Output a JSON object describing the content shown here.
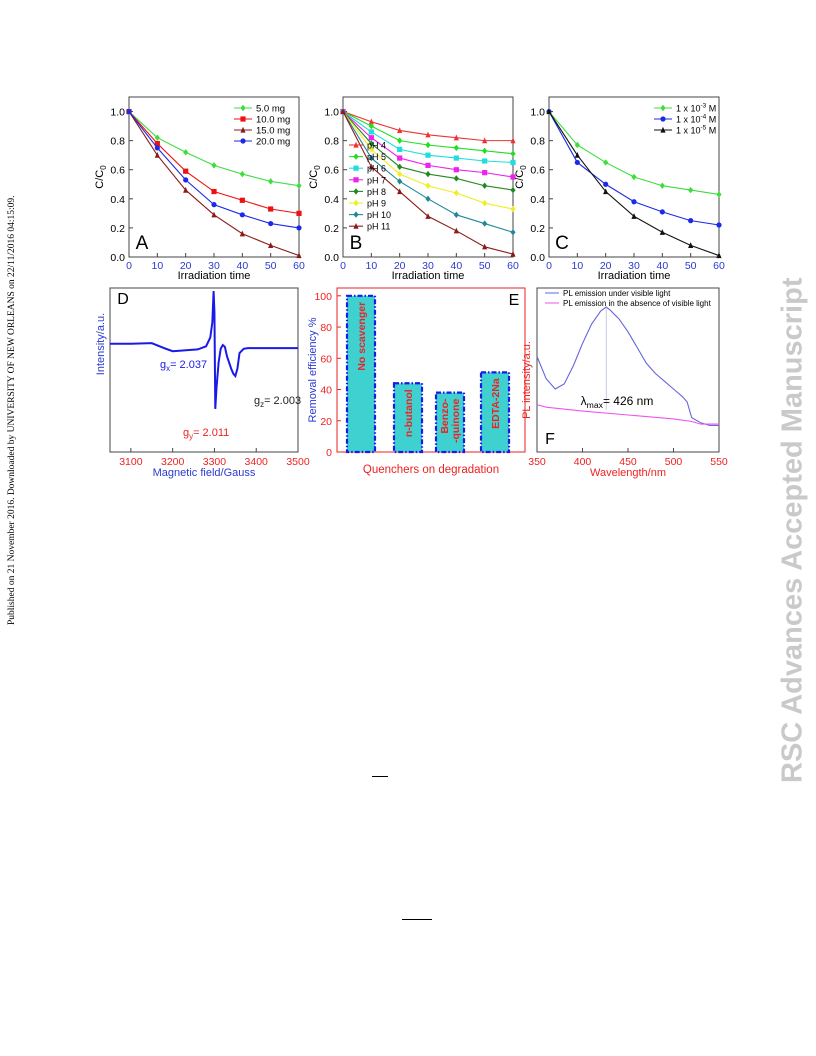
{
  "side_left": "Published on 21 November 2016. Downloaded by UNIVERSITY OF NEW ORLEANS on 22/11/2016 04:15:09.",
  "side_right": "RSC Advances Accepted Manuscript",
  "chart_data": [
    {
      "id": "A",
      "type": "line",
      "panel_label": "A",
      "xlabel": "Irradiation time",
      "ylabel": "C/C0",
      "xlim": [
        0,
        60
      ],
      "ylim": [
        0,
        1.1
      ],
      "xticks": [
        0,
        10,
        20,
        30,
        40,
        50,
        60
      ],
      "yticks": [
        0.0,
        0.2,
        0.4,
        0.6,
        0.8,
        1.0
      ],
      "legend_position": "top-right",
      "series": [
        {
          "name": "5.0 mg",
          "color": "#3cde3c",
          "marker": "diamond",
          "x": [
            0,
            10,
            20,
            30,
            40,
            50,
            60
          ],
          "y": [
            1.0,
            0.82,
            0.72,
            0.63,
            0.57,
            0.52,
            0.49
          ]
        },
        {
          "name": "10.0 mg",
          "color": "#ee1111",
          "marker": "square",
          "x": [
            0,
            10,
            20,
            30,
            40,
            50,
            60
          ],
          "y": [
            1.0,
            0.78,
            0.59,
            0.45,
            0.39,
            0.33,
            0.3
          ]
        },
        {
          "name": "15.0 mg",
          "color": "#8b1a1a",
          "marker": "triangle",
          "x": [
            0,
            10,
            20,
            30,
            40,
            50,
            60
          ],
          "y": [
            1.0,
            0.7,
            0.46,
            0.29,
            0.16,
            0.08,
            0.01
          ]
        },
        {
          "name": "20.0 mg",
          "color": "#1a2ae8",
          "marker": "circle",
          "x": [
            0,
            10,
            20,
            30,
            40,
            50,
            60
          ],
          "y": [
            1.0,
            0.75,
            0.53,
            0.36,
            0.29,
            0.23,
            0.2
          ]
        }
      ]
    },
    {
      "id": "B",
      "type": "line",
      "panel_label": "B",
      "xlabel": "Irradiation time",
      "ylabel": "C/C0",
      "xlim": [
        0,
        60
      ],
      "ylim": [
        0,
        1.1
      ],
      "xticks": [
        0,
        10,
        20,
        30,
        40,
        50,
        60
      ],
      "yticks": [
        0.0,
        0.2,
        0.4,
        0.6,
        0.8,
        1.0
      ],
      "legend_position": "bottom-left",
      "series": [
        {
          "name": "pH 4",
          "color": "#ee3333",
          "marker": "triangle",
          "x": [
            0,
            10,
            20,
            30,
            40,
            50,
            60
          ],
          "y": [
            1.0,
            0.93,
            0.87,
            0.84,
            0.82,
            0.8,
            0.8
          ]
        },
        {
          "name": "pH 5",
          "color": "#22dd22",
          "marker": "diamond",
          "x": [
            0,
            10,
            20,
            30,
            40,
            50,
            60
          ],
          "y": [
            1.0,
            0.9,
            0.8,
            0.77,
            0.75,
            0.73,
            0.71
          ]
        },
        {
          "name": "pH 6",
          "color": "#22dddd",
          "marker": "square",
          "x": [
            0,
            10,
            20,
            30,
            40,
            50,
            60
          ],
          "y": [
            1.0,
            0.86,
            0.74,
            0.7,
            0.68,
            0.66,
            0.65
          ]
        },
        {
          "name": "pH 7",
          "color": "#ee22ee",
          "marker": "square",
          "x": [
            0,
            10,
            20,
            30,
            40,
            50,
            60
          ],
          "y": [
            1.0,
            0.82,
            0.68,
            0.63,
            0.6,
            0.58,
            0.55
          ]
        },
        {
          "name": "pH 8",
          "color": "#228822",
          "marker": "diamond",
          "x": [
            0,
            10,
            20,
            30,
            40,
            50,
            60
          ],
          "y": [
            1.0,
            0.78,
            0.62,
            0.57,
            0.54,
            0.49,
            0.46
          ]
        },
        {
          "name": "pH 9",
          "color": "#eeee22",
          "marker": "diamond",
          "x": [
            0,
            10,
            20,
            30,
            40,
            50,
            60
          ],
          "y": [
            1.0,
            0.74,
            0.57,
            0.49,
            0.44,
            0.37,
            0.33
          ]
        },
        {
          "name": "pH 10",
          "color": "#228899",
          "marker": "diamond",
          "x": [
            0,
            10,
            20,
            30,
            40,
            50,
            60
          ],
          "y": [
            1.0,
            0.68,
            0.52,
            0.4,
            0.29,
            0.23,
            0.17
          ]
        },
        {
          "name": "pH 11",
          "color": "#8b1a1a",
          "marker": "triangle",
          "x": [
            0,
            10,
            20,
            30,
            40,
            50,
            60
          ],
          "y": [
            1.0,
            0.62,
            0.45,
            0.28,
            0.18,
            0.07,
            0.02
          ]
        }
      ]
    },
    {
      "id": "C",
      "type": "line",
      "panel_label": "C",
      "xlabel": "Irradiation time",
      "ylabel": "C/C0",
      "xlim": [
        0,
        60
      ],
      "ylim": [
        0,
        1.1
      ],
      "xticks": [
        0,
        10,
        20,
        30,
        40,
        50,
        60
      ],
      "yticks": [
        0.0,
        0.2,
        0.4,
        0.6,
        0.8,
        1.0
      ],
      "legend_position": "top-right",
      "series": [
        {
          "name": "1 x 10-3 M",
          "name_base": "1 x 10",
          "name_exp": "-3",
          "name_unit": " M",
          "color": "#3cde3c",
          "marker": "diamond",
          "x": [
            0,
            10,
            20,
            30,
            40,
            50,
            60
          ],
          "y": [
            1.0,
            0.77,
            0.65,
            0.55,
            0.49,
            0.46,
            0.43
          ]
        },
        {
          "name": "1 x 10-4 M",
          "name_base": "1 x 10",
          "name_exp": "-4",
          "name_unit": " M",
          "color": "#1a2ae8",
          "marker": "circle",
          "x": [
            0,
            10,
            20,
            30,
            40,
            50,
            60
          ],
          "y": [
            1.0,
            0.65,
            0.5,
            0.38,
            0.31,
            0.25,
            0.22
          ]
        },
        {
          "name": "1 x 10-5 M",
          "name_base": "1 x 10",
          "name_exp": "-5",
          "name_unit": " M",
          "color": "#111111",
          "marker": "triangle",
          "x": [
            0,
            10,
            20,
            30,
            40,
            50,
            60
          ],
          "y": [
            1.0,
            0.7,
            0.45,
            0.28,
            0.17,
            0.08,
            0.01
          ]
        }
      ]
    },
    {
      "id": "D",
      "type": "line",
      "panel_label": "D",
      "xlabel": "Magnetic field/Gauss",
      "ylabel": "Intensity/a.u.",
      "xlim": [
        3050,
        3500
      ],
      "xticks": [
        3100,
        3200,
        3300,
        3400,
        3500
      ],
      "series": [
        {
          "name": "",
          "color": "#1a1ae8",
          "x": [
            3050,
            3100,
            3150,
            3180,
            3200,
            3220,
            3240,
            3260,
            3280,
            3290,
            3295,
            3298,
            3300,
            3302,
            3305,
            3310,
            3315,
            3320,
            3325,
            3330,
            3340,
            3345,
            3350,
            3355,
            3360,
            3370,
            3380,
            3400,
            3450,
            3500
          ],
          "y": [
            0.1,
            0.1,
            0.11,
            0.03,
            -0.02,
            -0.01,
            0.0,
            0.01,
            0.06,
            0.2,
            0.45,
            0.95,
            0.6,
            -0.95,
            -0.6,
            -0.2,
            0.02,
            0.08,
            0.05,
            -0.1,
            -0.3,
            -0.38,
            -0.42,
            -0.3,
            -0.05,
            0.02,
            0.03,
            0.03,
            0.03,
            0.03
          ]
        }
      ],
      "annotations": [
        {
          "base": "g",
          "sub": "x",
          "rest": "= 2.037",
          "color": "#1a1ae8"
        },
        {
          "base": "g",
          "sub": "z",
          "rest": "= 2.003",
          "color": "#222222"
        },
        {
          "base": "g",
          "sub": "y",
          "rest": "= 2.011",
          "color": "#ee2222"
        }
      ]
    },
    {
      "id": "E",
      "type": "bar",
      "panel_label": "E",
      "xlabel": "Quenchers on degradation",
      "ylabel": "Removal efficiency %",
      "ylim": [
        0,
        105
      ],
      "yticks": [
        0,
        20,
        40,
        60,
        80,
        100
      ],
      "categories": [
        "No scavenger",
        "n-butanol",
        "Benzo-\n-quinone",
        "EDTA-2Na"
      ],
      "values": [
        100,
        44,
        38,
        51
      ],
      "bar_color": "#3fd0d0",
      "bar_edge": "#1a1ae8",
      "label_color": "#ee2222"
    },
    {
      "id": "F",
      "type": "line",
      "panel_label": "F",
      "xlabel": "Wavelength/nm",
      "ylabel": "PL intensity/a.u.",
      "xlim": [
        350,
        550
      ],
      "xticks": [
        350,
        400,
        450,
        500,
        550
      ],
      "legend_position": "top",
      "peak_label": {
        "base": "λ",
        "sub": "max",
        "rest": "= 426 nm"
      },
      "series": [
        {
          "name": "PL emission under visible light",
          "color": "#6666dd",
          "x": [
            350,
            360,
            370,
            380,
            390,
            400,
            410,
            420,
            426,
            430,
            440,
            450,
            460,
            470,
            480,
            490,
            500,
            510,
            515,
            520,
            530,
            540,
            550
          ],
          "y": [
            0.55,
            0.38,
            0.3,
            0.34,
            0.48,
            0.65,
            0.8,
            0.9,
            0.93,
            0.91,
            0.84,
            0.74,
            0.62,
            0.5,
            0.42,
            0.36,
            0.3,
            0.24,
            0.2,
            0.08,
            0.04,
            0.02,
            0.02
          ]
        },
        {
          "name": "PL emission in the absence of visible light",
          "color": "#ee55ee",
          "x": [
            350,
            360,
            400,
            450,
            500,
            520,
            530,
            550
          ],
          "y": [
            0.18,
            0.16,
            0.13,
            0.1,
            0.07,
            0.05,
            0.03,
            0.03
          ]
        }
      ]
    }
  ]
}
